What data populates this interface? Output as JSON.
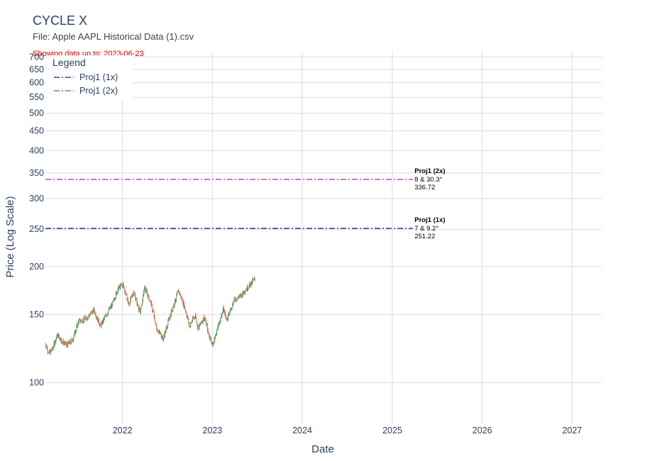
{
  "chart_data": {
    "type": "candlestick",
    "title": "CYCLE X",
    "subtitle": "File: Apple AAPL Historical Data (1).csv",
    "note": "Showing data up to: 2023-06-23",
    "xlabel": "Date",
    "ylabel": "Price (Log Scale)",
    "y_scale": "log",
    "ylim": [
      78,
      725
    ],
    "xlim": [
      "2021-02-22",
      "2027-05-01"
    ],
    "grid": true,
    "x_ticks": [
      "2022",
      "2023",
      "2024",
      "2025",
      "2026",
      "2027"
    ],
    "y_ticks": [
      100,
      150,
      200,
      250,
      300,
      350,
      400,
      450,
      500,
      550,
      600,
      650,
      700
    ],
    "legend": {
      "title": "Legend",
      "placement": "top-left",
      "entries": [
        {
          "name": "Proj1 (1x)",
          "color": "#3b3fa8"
        },
        {
          "name": "Proj1 (2x)",
          "color": "#b45cc0"
        }
      ]
    },
    "series": [
      {
        "name": "Proj1 (1x)",
        "type": "hline",
        "value": 251.22,
        "x_start": "2021-02-22",
        "x_end": "2025-03-25",
        "color": "#3b3fa8",
        "dash": "dashdot"
      },
      {
        "name": "Proj1 (2x)",
        "type": "hline",
        "value": 336.72,
        "x_start": "2021-02-22",
        "x_end": "2025-03-25",
        "color": "#b45cc0",
        "dash": "dashdot"
      }
    ],
    "annotations": [
      {
        "title": "Proj1 (1x)",
        "line1": "7 & 9.2°",
        "line2": "251.22",
        "x": "2025-04-01",
        "y": 251.22
      },
      {
        "title": "Proj1 (2x)",
        "line1": "8 & 30.3°",
        "line2": "336.72",
        "x": "2025-04-01",
        "y": 336.72
      }
    ],
    "price_path": [
      [
        "2021-02-22",
        126
      ],
      [
        "2021-03-08",
        119
      ],
      [
        "2021-03-22",
        122
      ],
      [
        "2021-04-12",
        133
      ],
      [
        "2021-05-01",
        128
      ],
      [
        "2021-05-20",
        125
      ],
      [
        "2021-06-15",
        130
      ],
      [
        "2021-07-06",
        144
      ],
      [
        "2021-08-02",
        146
      ],
      [
        "2021-09-07",
        154
      ],
      [
        "2021-10-04",
        140
      ],
      [
        "2021-10-25",
        149
      ],
      [
        "2021-11-22",
        160
      ],
      [
        "2021-12-13",
        175
      ],
      [
        "2022-01-03",
        180
      ],
      [
        "2022-01-27",
        159
      ],
      [
        "2022-02-15",
        172
      ],
      [
        "2022-03-14",
        151
      ],
      [
        "2022-04-01",
        176
      ],
      [
        "2022-04-25",
        162
      ],
      [
        "2022-05-20",
        138
      ],
      [
        "2022-06-16",
        130
      ],
      [
        "2022-07-15",
        150
      ],
      [
        "2022-08-17",
        173
      ],
      [
        "2022-09-12",
        156
      ],
      [
        "2022-09-30",
        140
      ],
      [
        "2022-10-24",
        150
      ],
      [
        "2022-11-04",
        138
      ],
      [
        "2022-11-30",
        148
      ],
      [
        "2022-12-16",
        134
      ],
      [
        "2023-01-03",
        125
      ],
      [
        "2023-01-31",
        144
      ],
      [
        "2023-02-15",
        155
      ],
      [
        "2023-03-02",
        146
      ],
      [
        "2023-03-31",
        164
      ],
      [
        "2023-04-27",
        168
      ],
      [
        "2023-05-19",
        175
      ],
      [
        "2023-06-23",
        186
      ]
    ]
  }
}
